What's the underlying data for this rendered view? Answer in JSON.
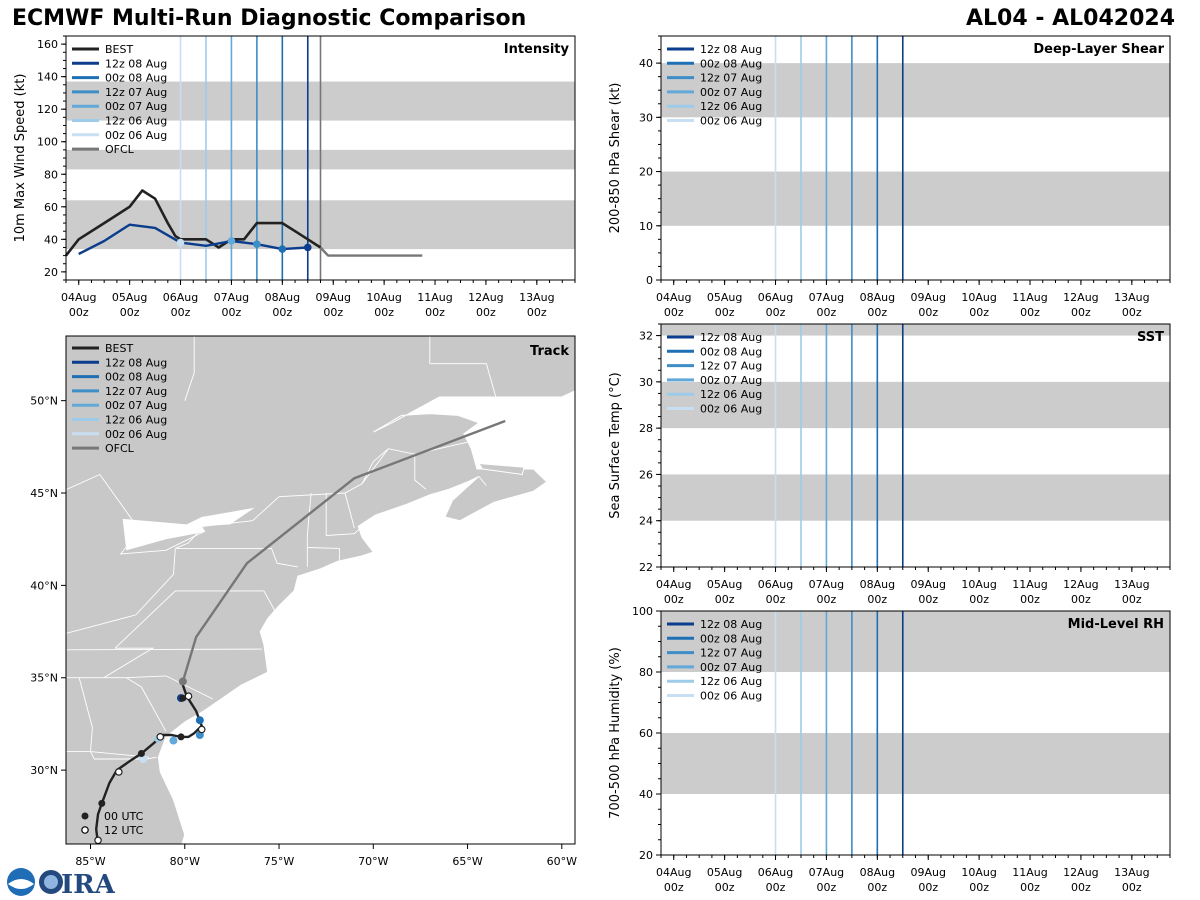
{
  "header": {
    "title": "ECMWF Multi-Run Diagnostic Comparison",
    "storm_id": "AL04 - AL042024"
  },
  "colors": {
    "BEST": "#222222",
    "12z 08 Aug": "#0b3d8c",
    "00z 08 Aug": "#1f6fb4",
    "12z 07 Aug": "#3d8ec6",
    "00z 07 Aug": "#62a8d8",
    "12z 06 Aug": "#9dcbea",
    "00z 06 Aug": "#c8def2",
    "OFCL": "#777777",
    "band": "#cccccc",
    "land": "#c8c8c8"
  },
  "time_axis": {
    "ticks": [
      {
        "day": "04Aug",
        "hour": "00z"
      },
      {
        "day": "05Aug",
        "hour": "00z"
      },
      {
        "day": "06Aug",
        "hour": "00z"
      },
      {
        "day": "07Aug",
        "hour": "00z"
      },
      {
        "day": "08Aug",
        "hour": "00z"
      },
      {
        "day": "09Aug",
        "hour": "00z"
      },
      {
        "day": "10Aug",
        "hour": "00z"
      },
      {
        "day": "11Aug",
        "hour": "00z"
      },
      {
        "day": "12Aug",
        "hour": "00z"
      },
      {
        "day": "13Aug",
        "hour": "00z"
      }
    ],
    "range_days": [
      -0.25,
      9.75
    ]
  },
  "run_init_days": [
    {
      "run": "00z 06 Aug",
      "day": 2.0
    },
    {
      "run": "12z 06 Aug",
      "day": 2.5
    },
    {
      "run": "00z 07 Aug",
      "day": 3.0
    },
    {
      "run": "12z 07 Aug",
      "day": 3.5
    },
    {
      "run": "00z 08 Aug",
      "day": 4.0
    },
    {
      "run": "12z 08 Aug",
      "day": 4.5
    }
  ],
  "chart_data": [
    {
      "type": "line",
      "panel": "intensity",
      "title": "Intensity",
      "ylabel": "10m Max Wind Speed (kt)",
      "ylim": [
        15,
        165
      ],
      "yticks": [
        20,
        40,
        60,
        80,
        100,
        120,
        140,
        160
      ],
      "bands": [
        [
          34,
          64
        ],
        [
          83,
          95
        ],
        [
          113,
          137
        ]
      ],
      "legend": [
        "BEST",
        "12z 08 Aug",
        "00z 08 Aug",
        "12z 07 Aug",
        "00z 07 Aug",
        "12z 06 Aug",
        "00z 06 Aug",
        "OFCL"
      ],
      "series": [
        {
          "name": "BEST",
          "x": [
            -0.25,
            0,
            0.5,
            1.0,
            1.25,
            1.5,
            1.75,
            1.9,
            2.0,
            2.25,
            2.5,
            2.75,
            3.0,
            3.25,
            3.5,
            3.75,
            4.0,
            4.25,
            4.5,
            4.75
          ],
          "y": [
            30,
            40,
            50,
            60,
            70,
            65,
            50,
            42,
            40,
            40,
            40,
            35,
            40,
            40,
            50,
            50,
            50,
            45,
            40,
            35
          ]
        },
        {
          "name": "12z 08 Aug",
          "x": [
            -0.0,
            0.5,
            1.0,
            1.5,
            2.0,
            2.5,
            3.0,
            3.5,
            4.0,
            4.5
          ],
          "y": [
            31,
            39,
            49,
            47,
            38,
            36,
            39,
            37,
            34,
            35
          ]
        },
        {
          "name": "OFCL",
          "x": [
            4.75,
            4.9,
            5.25,
            5.75,
            6.25,
            6.75
          ],
          "y": [
            35,
            30,
            30,
            30,
            30,
            30
          ]
        }
      ],
      "markers": [
        {
          "run": "00z 06 Aug",
          "x": 2.0,
          "y": 38
        },
        {
          "run": "00z 07 Aug",
          "x": 3.0,
          "y": 39
        },
        {
          "run": "12z 07 Aug",
          "x": 3.5,
          "y": 37
        },
        {
          "run": "00z 08 Aug",
          "x": 4.0,
          "y": 34
        },
        {
          "run": "12z 08 Aug",
          "x": 4.5,
          "y": 35
        }
      ],
      "vlines": [
        {
          "run": "00z 06 Aug",
          "x": 2.0
        },
        {
          "run": "12z 06 Aug",
          "x": 2.5
        },
        {
          "run": "00z 07 Aug",
          "x": 3.0
        },
        {
          "run": "12z 07 Aug",
          "x": 3.5
        },
        {
          "run": "00z 08 Aug",
          "x": 4.0
        },
        {
          "run": "12z 08 Aug",
          "x": 4.5
        },
        {
          "run": "OFCL",
          "x": 4.75
        }
      ]
    },
    {
      "type": "line",
      "panel": "shear",
      "title": "Deep-Layer Shear",
      "ylabel": "200-850 hPa Shear (kt)",
      "ylim": [
        0,
        45
      ],
      "yticks": [
        0,
        10,
        20,
        30,
        40
      ],
      "bands": [
        [
          10,
          20
        ],
        [
          30,
          40
        ]
      ],
      "legend": [
        "12z 08 Aug",
        "00z 08 Aug",
        "12z 07 Aug",
        "00z 07 Aug",
        "12z 06 Aug",
        "00z 06 Aug"
      ],
      "vlines_from": "run_init_days"
    },
    {
      "type": "line",
      "panel": "sst",
      "title": "SST",
      "ylabel": "Sea Surface Temp (°C)",
      "ylim": [
        22,
        32.5
      ],
      "yticks": [
        22,
        24,
        26,
        28,
        30,
        32
      ],
      "bands": [
        [
          24,
          26
        ],
        [
          28,
          30
        ],
        [
          32,
          32.5
        ]
      ],
      "legend": [
        "12z 08 Aug",
        "00z 08 Aug",
        "12z 07 Aug",
        "00z 07 Aug",
        "12z 06 Aug",
        "00z 06 Aug"
      ],
      "vlines_from": "run_init_days"
    },
    {
      "type": "line",
      "panel": "rh",
      "title": "Mid-Level RH",
      "ylabel": "700-500 hPa Humidity (%)",
      "ylim": [
        20,
        100
      ],
      "yticks": [
        20,
        40,
        60,
        80,
        100
      ],
      "bands": [
        [
          40,
          60
        ],
        [
          80,
          100
        ]
      ],
      "legend": [
        "12z 08 Aug",
        "00z 08 Aug",
        "12z 07 Aug",
        "00z 07 Aug",
        "12z 06 Aug",
        "00z 06 Aug"
      ],
      "vlines_from": "run_init_days"
    },
    {
      "type": "scatter",
      "panel": "track",
      "title": "Track",
      "lon_range": [
        -86.3,
        -59.3
      ],
      "lat_range": [
        26.0,
        53.5
      ],
      "xticks": [
        {
          "lon": -85,
          "label": "85°W"
        },
        {
          "lon": -80,
          "label": "80°W"
        },
        {
          "lon": -75,
          "label": "75°W"
        },
        {
          "lon": -70,
          "label": "70°W"
        },
        {
          "lon": -65,
          "label": "65°W"
        },
        {
          "lon": -60,
          "label": "60°W"
        }
      ],
      "yticks": [
        {
          "lat": 30,
          "label": "30°N"
        },
        {
          "lat": 35,
          "label": "35°N"
        },
        {
          "lat": 40,
          "label": "40°N"
        },
        {
          "lat": 45,
          "label": "45°N"
        },
        {
          "lat": 50,
          "label": "50°N"
        }
      ],
      "legend": [
        "BEST",
        "12z 08 Aug",
        "00z 08 Aug",
        "12z 07 Aug",
        "00z 07 Aug",
        "12z 06 Aug",
        "00z 06 Aug",
        "OFCL"
      ],
      "marker_legend": [
        "00 UTC",
        "12 UTC"
      ],
      "best_track": [
        [
          -84.6,
          26.0
        ],
        [
          -84.7,
          26.8
        ],
        [
          -84.6,
          27.6
        ],
        [
          -84.4,
          28.2
        ],
        [
          -84.0,
          29.3
        ],
        [
          -83.6,
          30.0
        ],
        [
          -82.9,
          30.5
        ],
        [
          -82.3,
          30.9
        ],
        [
          -81.6,
          31.5
        ],
        [
          -81.2,
          31.9
        ],
        [
          -80.7,
          31.9
        ],
        [
          -80.2,
          31.8
        ],
        [
          -79.8,
          31.8
        ],
        [
          -79.5,
          32.0
        ],
        [
          -79.1,
          32.4
        ],
        [
          -79.4,
          33.2
        ],
        [
          -79.9,
          34.0
        ],
        [
          -80.1,
          34.6
        ],
        [
          -80.1,
          34.9
        ]
      ],
      "ofcl_track": [
        [
          -80.1,
          34.8
        ],
        [
          -79.4,
          37.2
        ],
        [
          -76.7,
          41.2
        ],
        [
          -71.0,
          45.8
        ],
        [
          -63.0,
          48.9
        ]
      ],
      "best_markers_00z": [
        [
          -84.4,
          28.2
        ],
        [
          -82.3,
          30.9
        ],
        [
          -80.2,
          31.8
        ],
        [
          -80.1,
          33.9
        ]
      ],
      "best_markers_12z": [
        [
          -84.6,
          26.2
        ],
        [
          -83.5,
          29.9
        ],
        [
          -81.3,
          31.8
        ],
        [
          -79.1,
          32.2
        ],
        [
          -79.8,
          34.0
        ]
      ],
      "run_positions": [
        {
          "run": "12z 08 Aug",
          "lon": -80.2,
          "lat": 33.9
        },
        {
          "run": "00z 08 Aug",
          "lon": -79.2,
          "lat": 32.7
        },
        {
          "run": "12z 07 Aug",
          "lon": -79.2,
          "lat": 31.9
        },
        {
          "run": "00z 07 Aug",
          "lon": -80.6,
          "lat": 31.6
        },
        {
          "run": "12z 06 Aug",
          "lon": -81.4,
          "lat": 31.7
        },
        {
          "run": "00z 06 Aug",
          "lon": -82.2,
          "lat": 30.6
        },
        {
          "run": "OFCL",
          "lon": -80.1,
          "lat": 34.8
        }
      ]
    }
  ]
}
